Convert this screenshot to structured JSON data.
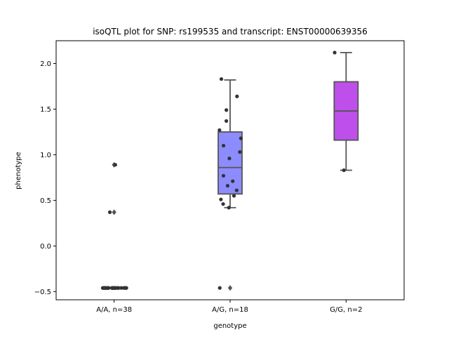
{
  "chart_data": {
    "type": "box",
    "title": "isoQTL plot for SNP: rs199535 and transcript: ENST00000639356",
    "xlabel": "genotype",
    "ylabel": "phenotype",
    "ylim": [
      -0.59,
      2.25
    ],
    "yticks": [
      -0.5,
      0.0,
      0.5,
      1.0,
      1.5,
      2.0
    ],
    "ytick_labels": [
      "−0.5",
      "0.0",
      "0.5",
      "1.0",
      "1.5",
      "2.0"
    ],
    "categories": [
      "A/A, n=38",
      "A/G, n=18",
      "G/G, n=2"
    ],
    "colors": {
      "A/A, n=38": "#8c8cff",
      "A/G, n=18": "#8c8cff",
      "G/G, n=2": "#bf4fea",
      "box_edge": "#555555",
      "point": "#333333"
    },
    "boxes": [
      {
        "category": "A/A, n=38",
        "q1": -0.46,
        "median": -0.46,
        "q3": -0.46,
        "whisker_low": -0.46,
        "whisker_high": -0.46,
        "fliers": [
          0.89,
          0.37
        ]
      },
      {
        "category": "A/G, n=18",
        "q1": 0.57,
        "median": 0.86,
        "q3": 1.25,
        "whisker_low": 0.42,
        "whisker_high": 1.82,
        "fliers": [
          -0.46
        ]
      },
      {
        "category": "G/G, n=2",
        "q1": 1.16,
        "median": 1.48,
        "q3": 1.8,
        "whisker_low": 0.83,
        "whisker_high": 2.12,
        "fliers": []
      }
    ],
    "points": [
      {
        "category": "A/A, n=38",
        "values": [
          -0.46,
          -0.46,
          -0.46,
          -0.46,
          -0.46,
          -0.46,
          -0.46,
          -0.46,
          -0.46,
          -0.46,
          -0.46,
          -0.46,
          -0.46,
          -0.46,
          -0.46,
          -0.46,
          -0.46,
          -0.46,
          -0.46,
          -0.46,
          -0.46,
          -0.46,
          -0.46,
          -0.46,
          -0.46,
          -0.46,
          -0.46,
          -0.46,
          -0.46,
          -0.46,
          -0.46,
          -0.46,
          -0.46,
          -0.46,
          -0.46,
          -0.46,
          0.89,
          0.37
        ]
      },
      {
        "category": "A/G, n=18",
        "values": [
          1.83,
          1.64,
          1.49,
          1.37,
          1.27,
          1.18,
          1.1,
          1.03,
          0.96,
          0.77,
          0.71,
          0.66,
          0.61,
          0.55,
          0.51,
          0.46,
          0.42,
          -0.46
        ]
      },
      {
        "category": "G/G, n=2",
        "values": [
          2.12,
          0.83
        ]
      }
    ]
  }
}
